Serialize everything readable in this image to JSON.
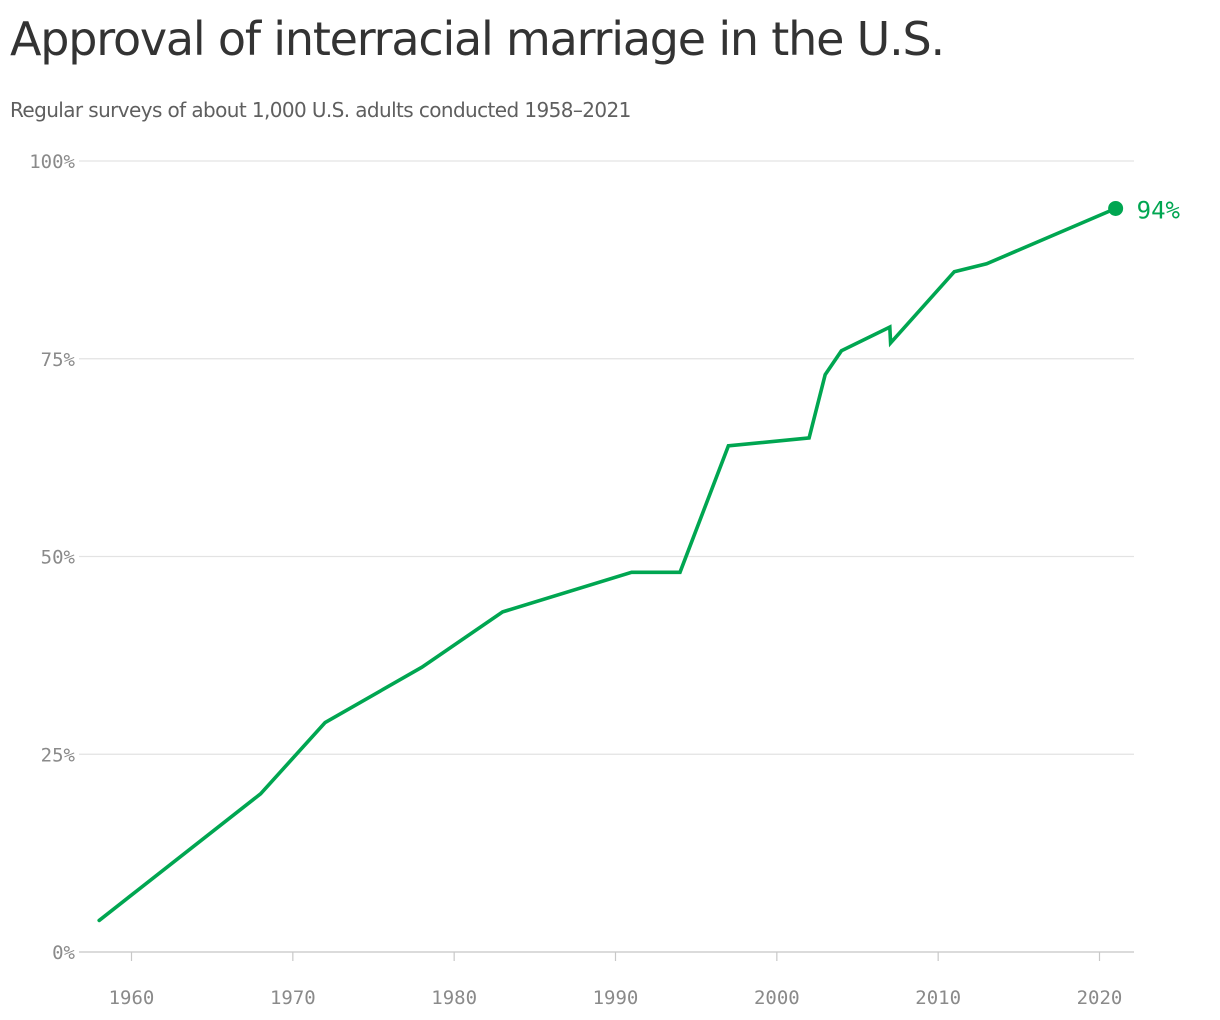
{
  "chart_data": {
    "type": "line",
    "title": "Approval of interracial marriage in the U.S.",
    "subtitle": "Regular surveys of about 1,000 U.S. adults conducted 1958–2021",
    "xlabel": "",
    "ylabel": "",
    "xlim": [
      1958,
      2022
    ],
    "ylim": [
      0,
      100
    ],
    "x_ticks": [
      1960,
      1970,
      1980,
      1990,
      2000,
      2010,
      2020
    ],
    "y_ticks": [
      0,
      25,
      50,
      75,
      100
    ],
    "y_tick_labels": [
      "0%",
      "25%",
      "50%",
      "75%",
      "100%"
    ],
    "grid": true,
    "series": [
      {
        "color": "#00a651",
        "x": [
          1958,
          1968,
          1972,
          1978,
          1983,
          1991,
          1994,
          1997,
          2002,
          2003,
          2004,
          2007,
          2007.05,
          2011,
          2013,
          2021
        ],
        "y": [
          4,
          20,
          29,
          36,
          43,
          48,
          48,
          64,
          65,
          73,
          76,
          79,
          77,
          86,
          87,
          94
        ]
      }
    ],
    "end_label": "94%"
  }
}
